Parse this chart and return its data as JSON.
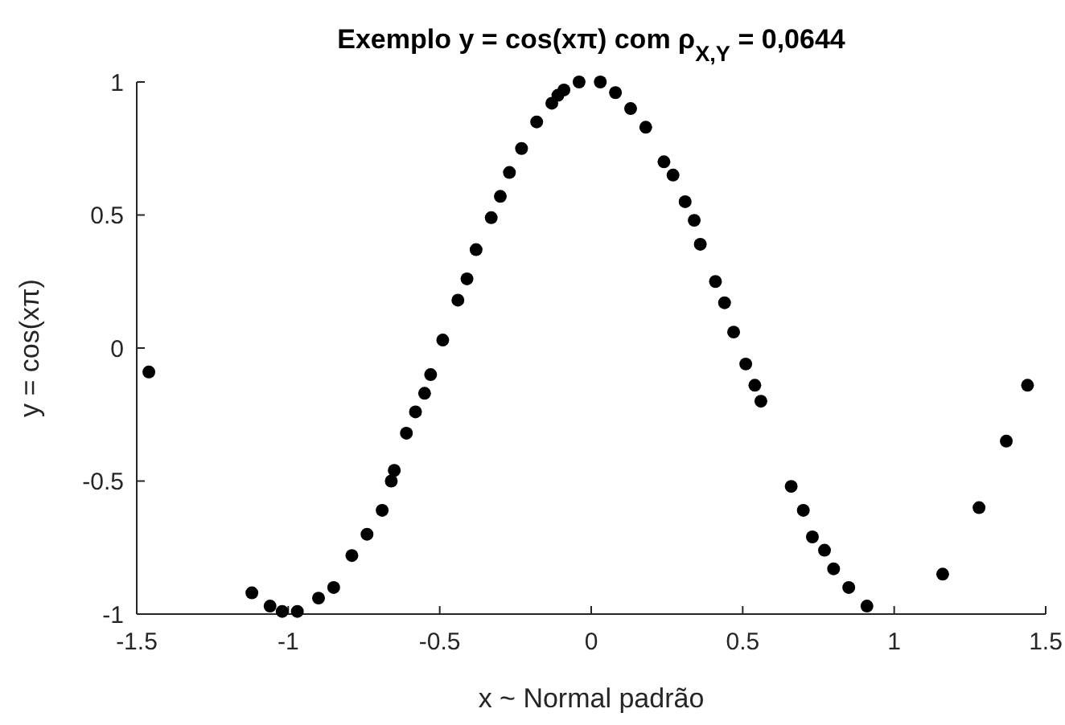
{
  "chart_data": {
    "type": "scatter",
    "title": "Exemplo y = cos(xπ) com ρ$_{X,Y}$ = 0,0644",
    "xlabel": "x ~ Normal padrão",
    "ylabel": "y = cos(xπ)",
    "xlim": [
      -1.5,
      1.5
    ],
    "xticks": [
      -1.5,
      -1,
      -0.5,
      0,
      0.5,
      1,
      1.5
    ],
    "ylim": [
      -1,
      1
    ],
    "yticks": [
      -1,
      -0.5,
      0,
      0.5,
      1
    ],
    "grid": false,
    "marker": "circle",
    "series": [
      {
        "color": "#000000",
        "x": [
          -1.46,
          -1.12,
          -1.06,
          -1.02,
          -0.97,
          -0.9,
          -0.85,
          -0.79,
          -0.74,
          -0.69,
          -0.66,
          -0.65,
          -0.61,
          -0.58,
          -0.55,
          -0.53,
          -0.49,
          -0.44,
          -0.41,
          -0.38,
          -0.33,
          -0.3,
          -0.27,
          -0.23,
          -0.18,
          -0.13,
          -0.11,
          -0.09,
          -0.04,
          0.03,
          0.08,
          0.13,
          0.18,
          0.24,
          0.27,
          0.31,
          0.34,
          0.36,
          0.41,
          0.44,
          0.47,
          0.51,
          0.54,
          0.56,
          0.66,
          0.7,
          0.73,
          0.77,
          0.8,
          0.85,
          0.91,
          1.16,
          1.28,
          1.37,
          1.44
        ],
        "values": [
          -0.09,
          -0.92,
          -0.97,
          -0.99,
          -0.99,
          -0.94,
          -0.9,
          -0.78,
          -0.7,
          -0.61,
          -0.5,
          -0.46,
          -0.32,
          -0.24,
          -0.17,
          -0.1,
          0.03,
          0.18,
          0.26,
          0.37,
          0.49,
          0.57,
          0.66,
          0.75,
          0.85,
          0.92,
          0.95,
          0.97,
          1.0,
          1.0,
          0.96,
          0.9,
          0.83,
          0.7,
          0.65,
          0.55,
          0.48,
          0.39,
          0.25,
          0.17,
          0.06,
          -0.06,
          -0.14,
          -0.2,
          -0.52,
          -0.61,
          -0.71,
          -0.76,
          -0.83,
          -0.9,
          -0.97,
          -0.85,
          -0.6,
          -0.35,
          -0.14
        ]
      }
    ]
  }
}
